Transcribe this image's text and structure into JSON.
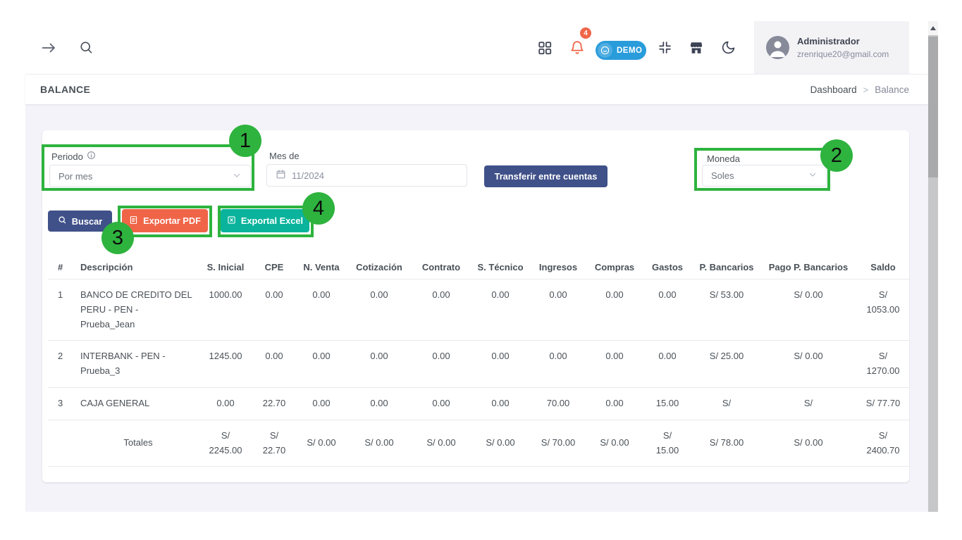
{
  "navbar": {
    "notification_badge": "4",
    "demo_badge": "DEMO",
    "user": {
      "name": "Administrador",
      "email": "zrenrique20@gmail.com"
    }
  },
  "page_header": {
    "title": "BALANCE",
    "breadcrumb_parent": "Dashboard",
    "breadcrumb_separator": ">",
    "breadcrumb_current": "Balance"
  },
  "filters": {
    "periodo_label": "Periodo",
    "periodo_value": "Por mes",
    "mes_label": "Mes de",
    "mes_value": "11/2024",
    "transfer_button": "Transferir entre cuentas",
    "moneda_label": "Moneda",
    "moneda_value": "Soles"
  },
  "actions": {
    "buscar": "Buscar",
    "export_pdf": "Exportar PDF",
    "export_excel": "Exportal Excel"
  },
  "table": {
    "columns": [
      "#",
      "Descripción",
      "S. Inicial",
      "CPE",
      "N. Venta",
      "Cotización",
      "Contrato",
      "S. Técnico",
      "Ingresos",
      "Compras",
      "Gastos",
      "P. Bancarios",
      "Pago P. Bancarios",
      "Saldo"
    ],
    "rows": [
      [
        "1",
        "BANCO DE CREDITO DEL\nPERU - PEN -\nPrueba_Jean",
        "1000.00",
        "0.00",
        "0.00",
        "0.00",
        "0.00",
        "0.00",
        "0.00",
        "0.00",
        "0.00",
        "S/ 53.00",
        "S/ 0.00",
        "S/\n1053.00"
      ],
      [
        "2",
        "INTERBANK - PEN -\nPrueba_3",
        "1245.00",
        "0.00",
        "0.00",
        "0.00",
        "0.00",
        "0.00",
        "0.00",
        "0.00",
        "0.00",
        "S/ 25.00",
        "S/ 0.00",
        "S/\n1270.00"
      ],
      [
        "3",
        "CAJA GENERAL",
        "0.00",
        "22.70",
        "0.00",
        "0.00",
        "0.00",
        "0.00",
        "70.00",
        "0.00",
        "15.00",
        "S/",
        "S/",
        "S/ 77.70"
      ]
    ],
    "totals": [
      "",
      "Totales",
      "S/\n2245.00",
      "S/\n22.70",
      "S/ 0.00",
      "S/ 0.00",
      "S/ 0.00",
      "S/ 0.00",
      "S/ 70.00",
      "S/ 0.00",
      "S/\n15.00",
      "S/ 78.00",
      "S/ 0.00",
      "S/\n2400.70"
    ]
  },
  "annotations": {
    "labels": [
      "1",
      "2",
      "3",
      "4"
    ],
    "highlight_color": "#2eb33e"
  },
  "colors": {
    "primary": "#405189",
    "pdf_button": "#f06548",
    "excel_button": "#0ab39c",
    "demo_badge_bg": "#299cdb",
    "notification": "#f06548",
    "annotation_green": "#2eb33e",
    "body_bg": "#f3f3f9"
  }
}
